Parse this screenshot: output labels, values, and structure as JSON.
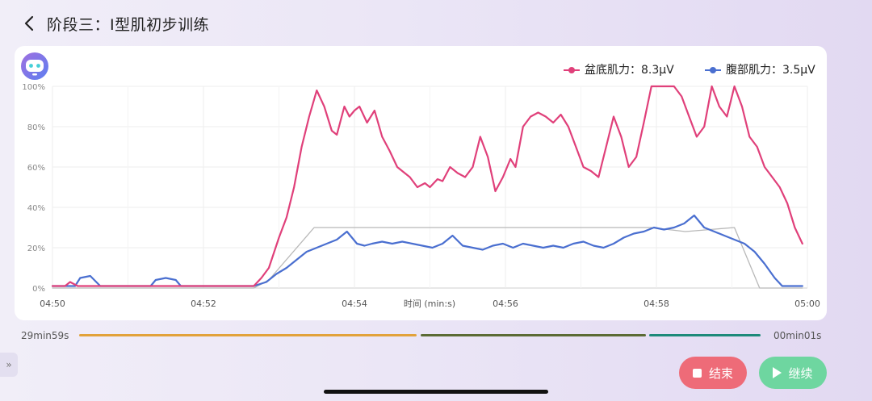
{
  "header": {
    "title": "阶段三：I型肌初步训练"
  },
  "legend": {
    "pelvic": {
      "label": "盆底肌力",
      "value": "8.3μV",
      "text": "盆底肌力：8.3μV",
      "color": "#e0407a"
    },
    "abdominal": {
      "label": "腹部肌力",
      "value": "3.5μV",
      "text": "腹部肌力：3.5μV",
      "color": "#4a6fd0"
    }
  },
  "chart_data": {
    "type": "line",
    "xlabel": "时间 (min:s)",
    "x_ticks": [
      "04:50",
      "04:52",
      "04:54",
      "04:56",
      "04:58",
      "05:00"
    ],
    "y_ticks": [
      "0%",
      "20%",
      "40%",
      "60%",
      "80%",
      "100%"
    ],
    "ylim": [
      0,
      100
    ],
    "xlim_seconds": [
      0,
      600
    ],
    "grid": true,
    "legend_position": "top-right",
    "series": [
      {
        "name": "盆底肌力",
        "color": "#e0407a",
        "x": [
          0,
          10,
          14,
          20,
          40,
          80,
          130,
          160,
          166,
          172,
          180,
          186,
          192,
          198,
          204,
          210,
          216,
          222,
          226,
          232,
          236,
          240,
          244,
          250,
          256,
          262,
          268,
          274,
          278,
          284,
          290,
          296,
          300,
          306,
          310,
          316,
          322,
          328,
          334,
          340,
          346,
          352,
          358,
          364,
          368,
          374,
          380,
          386,
          392,
          398,
          404,
          410,
          416,
          422,
          428,
          434,
          440,
          446,
          452,
          458,
          464,
          470,
          476,
          482,
          488,
          494,
          500,
          506,
          512,
          518,
          524,
          530,
          536,
          542,
          548,
          554,
          560,
          566,
          572,
          578,
          584,
          590,
          596
        ],
        "values": [
          1,
          1,
          3,
          1,
          1,
          1,
          1,
          1,
          5,
          10,
          25,
          35,
          50,
          70,
          85,
          98,
          90,
          78,
          76,
          90,
          85,
          88,
          90,
          82,
          88,
          75,
          68,
          60,
          58,
          55,
          50,
          52,
          50,
          54,
          53,
          60,
          57,
          55,
          60,
          75,
          65,
          48,
          55,
          64,
          60,
          80,
          85,
          87,
          85,
          82,
          86,
          80,
          70,
          60,
          58,
          55,
          70,
          85,
          75,
          60,
          65,
          82,
          100,
          100,
          100,
          100,
          95,
          85,
          75,
          80,
          100,
          90,
          85,
          100,
          90,
          75,
          70,
          60,
          55,
          50,
          42,
          30,
          22
        ]
      },
      {
        "name": "腹部肌力",
        "color": "#4a6fd0",
        "x": [
          0,
          18,
          22,
          30,
          38,
          78,
          82,
          90,
          98,
          102,
          106,
          110,
          160,
          170,
          178,
          186,
          194,
          202,
          210,
          218,
          226,
          234,
          242,
          248,
          254,
          262,
          270,
          278,
          286,
          294,
          302,
          310,
          318,
          326,
          334,
          342,
          350,
          358,
          366,
          374,
          382,
          390,
          398,
          406,
          414,
          422,
          430,
          438,
          446,
          454,
          462,
          470,
          478,
          486,
          494,
          502,
          510,
          518,
          526,
          534,
          542,
          550,
          558,
          566,
          574,
          580,
          586,
          592,
          596
        ],
        "values": [
          1,
          1,
          5,
          6,
          1,
          1,
          4,
          5,
          4,
          1,
          1,
          1,
          1,
          3,
          7,
          10,
          14,
          18,
          20,
          22,
          24,
          28,
          22,
          21,
          22,
          23,
          22,
          23,
          22,
          21,
          20,
          22,
          26,
          21,
          20,
          19,
          21,
          22,
          20,
          22,
          21,
          20,
          21,
          20,
          22,
          23,
          21,
          20,
          22,
          25,
          27,
          28,
          30,
          29,
          30,
          32,
          36,
          30,
          28,
          26,
          24,
          22,
          18,
          12,
          5,
          1,
          1,
          1,
          1
        ]
      },
      {
        "name": "",
        "color": "#b8b8b8",
        "x": [
          0,
          160,
          172,
          208,
          452,
          476,
          503,
          542,
          562,
          590,
          596
        ],
        "values": [
          0,
          0,
          4,
          30,
          30,
          30,
          28,
          30,
          0,
          0,
          0
        ]
      }
    ]
  },
  "progress": {
    "remaining": "29min59s",
    "elapsed": "00min01s",
    "segment_colors": [
      "#e2a23a",
      "#5b6b34",
      "#1d8a7a"
    ]
  },
  "buttons": {
    "end": "结束",
    "continue": "继续"
  }
}
